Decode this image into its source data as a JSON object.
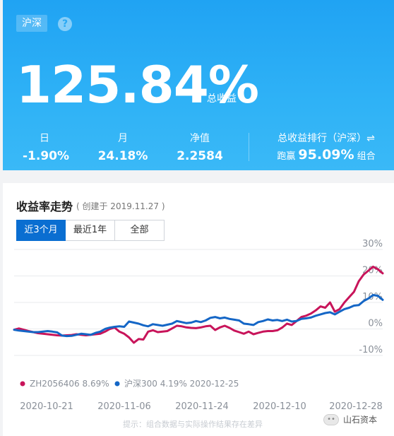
{
  "header": {
    "market_tag": "沪深",
    "help_symbol": "?",
    "total_return": "125.84%",
    "total_label": "总收益",
    "stats": {
      "day": {
        "label": "日",
        "value": "-1.90%"
      },
      "month": {
        "label": "月",
        "value": "24.18%"
      },
      "nav": {
        "label": "净值",
        "value": "2.2584"
      }
    },
    "rank": {
      "label": "总收益排行（沪深）⇌",
      "prefix": "跑赢",
      "value": "95.09%",
      "suffix": "组合"
    }
  },
  "trend": {
    "title": "收益率走势",
    "subtitle": "( 创建于 2019.11.27 )",
    "tabs": [
      {
        "label": "近3个月",
        "active": true
      },
      {
        "label": "最近1年",
        "active": false
      },
      {
        "label": "全部",
        "active": false
      }
    ],
    "hint": "提示：组合数据与实际操作结果存在差异",
    "watermark": "山石资本",
    "watermark_icon": "wechat-icon"
  },
  "chart_data": {
    "type": "line",
    "y_ticks": [
      "30%",
      "20%",
      "10%",
      "0%",
      "-10%"
    ],
    "y_tick_values": [
      30,
      20,
      10,
      0,
      -10
    ],
    "ylim": [
      -10,
      30
    ],
    "x_ticks": [
      "2020-10-21",
      "2020-11-06",
      "2020-11-24",
      "2020-12-10",
      "2020-12-28"
    ],
    "series": [
      {
        "name": "ZH2056406",
        "legend": "ZH2056406 8.69%",
        "color": "#c8145a",
        "values": [
          -0.3,
          0.2,
          -0.3,
          -0.8,
          -1.2,
          -1.6,
          -1.8,
          -2.0,
          -2.2,
          -2.4,
          -2.5,
          -2.4,
          -2.3,
          -2.0,
          -2.2,
          -2.4,
          -2.2,
          -2.0,
          -1.8,
          -1.0,
          0.0,
          0.5,
          -1.0,
          -1.8,
          -3.2,
          -5.2,
          -3.8,
          -4.0,
          -1.0,
          -0.5,
          -1.2,
          -1.0,
          -0.8,
          0.2,
          1.2,
          1.0,
          0.6,
          0.4,
          0.3,
          0.6,
          1.0,
          1.2,
          -0.4,
          0.6,
          1.2,
          0.4,
          -0.6,
          -1.2,
          -1.8,
          -1.0,
          -2.0,
          -1.5,
          -1.0,
          -0.8,
          -0.8,
          -0.5,
          0.5,
          2.0,
          1.5,
          3.0,
          4.5,
          5.0,
          5.8,
          7.0,
          8.5,
          8.0,
          10.0,
          6.5,
          7.5,
          10.0,
          12.0,
          14.0,
          18.0,
          20.5,
          22.0,
          23.5,
          22.5,
          21.0
        ]
      },
      {
        "name": "沪深300",
        "legend": "沪深300 4.19% 2020-12-25",
        "color": "#1466c6",
        "values": [
          -0.3,
          -0.6,
          -0.8,
          -1.0,
          -1.2,
          -1.2,
          -1.0,
          -0.8,
          -1.0,
          -1.3,
          -2.5,
          -2.7,
          -2.6,
          -2.2,
          -1.8,
          -2.0,
          -2.2,
          -1.5,
          -1.0,
          0.0,
          0.5,
          0.8,
          1.0,
          0.8,
          2.8,
          2.4,
          2.0,
          1.4,
          1.0,
          1.8,
          1.5,
          1.2,
          1.6,
          2.0,
          3.0,
          2.6,
          2.2,
          2.4,
          3.0,
          2.6,
          3.2,
          4.2,
          4.5,
          4.0,
          4.3,
          3.8,
          3.5,
          3.2,
          2.0,
          1.8,
          1.5,
          2.6,
          3.0,
          3.6,
          3.2,
          3.4,
          3.0,
          3.5,
          2.8,
          3.0,
          3.8,
          4.0,
          4.3,
          5.0,
          5.5,
          6.0,
          6.3,
          5.5,
          6.5,
          7.5,
          8.0,
          8.8,
          9.0,
          10.5,
          11.5,
          12.8,
          12.5,
          11.0
        ]
      }
    ]
  }
}
